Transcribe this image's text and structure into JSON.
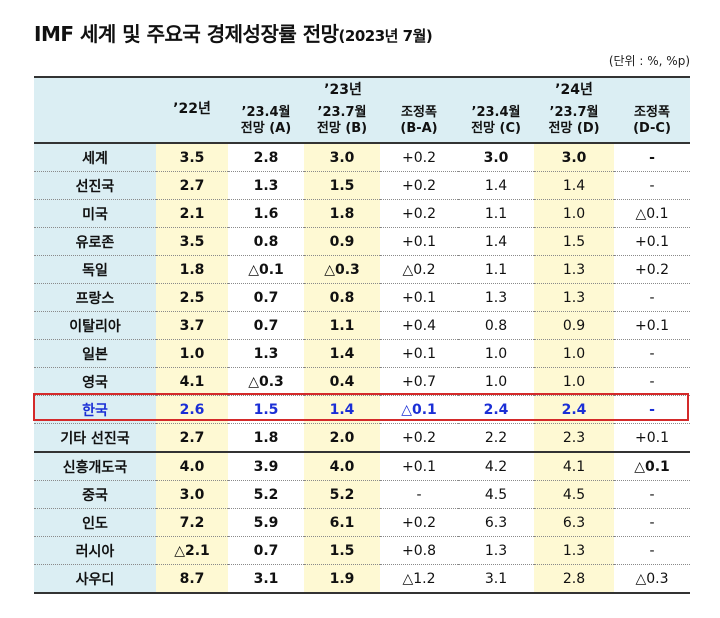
{
  "title": {
    "main": "IMF 세계 및 주요국 경제성장률 전망",
    "suffix": "(2023년 7월)"
  },
  "unit": "(단위 : %, %p)",
  "headers": {
    "y22": "’22년",
    "y23": "’23년",
    "y24": "’24년",
    "c23a": [
      "’23.4월",
      "전망 (A)"
    ],
    "c23b": [
      "’23.7월",
      "전망 (B)"
    ],
    "c23adj": [
      "조정폭",
      "(B-A)"
    ],
    "c24c": [
      "’23.4월",
      "전망 (C)"
    ],
    "c24d": [
      "’23.7월",
      "전망 (D)"
    ],
    "c24adj": [
      "조정폭",
      "(D-C)"
    ]
  },
  "rows": [
    [
      "세계",
      "3.5",
      "2.8",
      "3.0",
      "+0.2",
      "3.0",
      "3.0",
      "-"
    ],
    [
      "선진국",
      "2.7",
      "1.3",
      "1.5",
      "+0.2",
      "1.4",
      "1.4",
      "-"
    ],
    [
      "미국",
      "2.1",
      "1.6",
      "1.8",
      "+0.2",
      "1.1",
      "1.0",
      "△0.1"
    ],
    [
      "유로존",
      "3.5",
      "0.8",
      "0.9",
      "+0.1",
      "1.4",
      "1.5",
      "+0.1"
    ],
    [
      "독일",
      "1.8",
      "△0.1",
      "△0.3",
      "△0.2",
      "1.1",
      "1.3",
      "+0.2"
    ],
    [
      "프랑스",
      "2.5",
      "0.7",
      "0.8",
      "+0.1",
      "1.3",
      "1.3",
      "-"
    ],
    [
      "이탈리아",
      "3.7",
      "0.7",
      "1.1",
      "+0.4",
      "0.8",
      "0.9",
      "+0.1"
    ],
    [
      "일본",
      "1.0",
      "1.3",
      "1.4",
      "+0.1",
      "1.0",
      "1.0",
      "-"
    ],
    [
      "영국",
      "4.1",
      "△0.3",
      "0.4",
      "+0.7",
      "1.0",
      "1.0",
      "-"
    ],
    [
      "한국",
      "2.6",
      "1.5",
      "1.4",
      "△0.1",
      "2.4",
      "2.4",
      "-"
    ],
    [
      "기타 선진국",
      "2.7",
      "1.8",
      "2.0",
      "+0.2",
      "2.2",
      "2.3",
      "+0.1"
    ],
    [
      "신흥개도국",
      "4.0",
      "3.9",
      "4.0",
      "+0.1",
      "4.2",
      "4.1",
      "△0.1"
    ],
    [
      "중국",
      "3.0",
      "5.2",
      "5.2",
      "-",
      "4.5",
      "4.5",
      "-"
    ],
    [
      "인도",
      "7.2",
      "5.9",
      "6.1",
      "+0.2",
      "6.3",
      "6.3",
      "-"
    ],
    [
      "러시아",
      "△2.1",
      "0.7",
      "1.5",
      "+0.8",
      "1.3",
      "1.3",
      "-"
    ],
    [
      "사우디",
      "8.7",
      "3.1",
      "1.9",
      "△1.2",
      "3.1",
      "2.8",
      "△0.3"
    ]
  ],
  "colors": {
    "header_bg": "#dbeef3",
    "highlight_bg": "#fef9d3",
    "korea_text": "#1b2fd6",
    "korea_box": "#d42a2a"
  }
}
